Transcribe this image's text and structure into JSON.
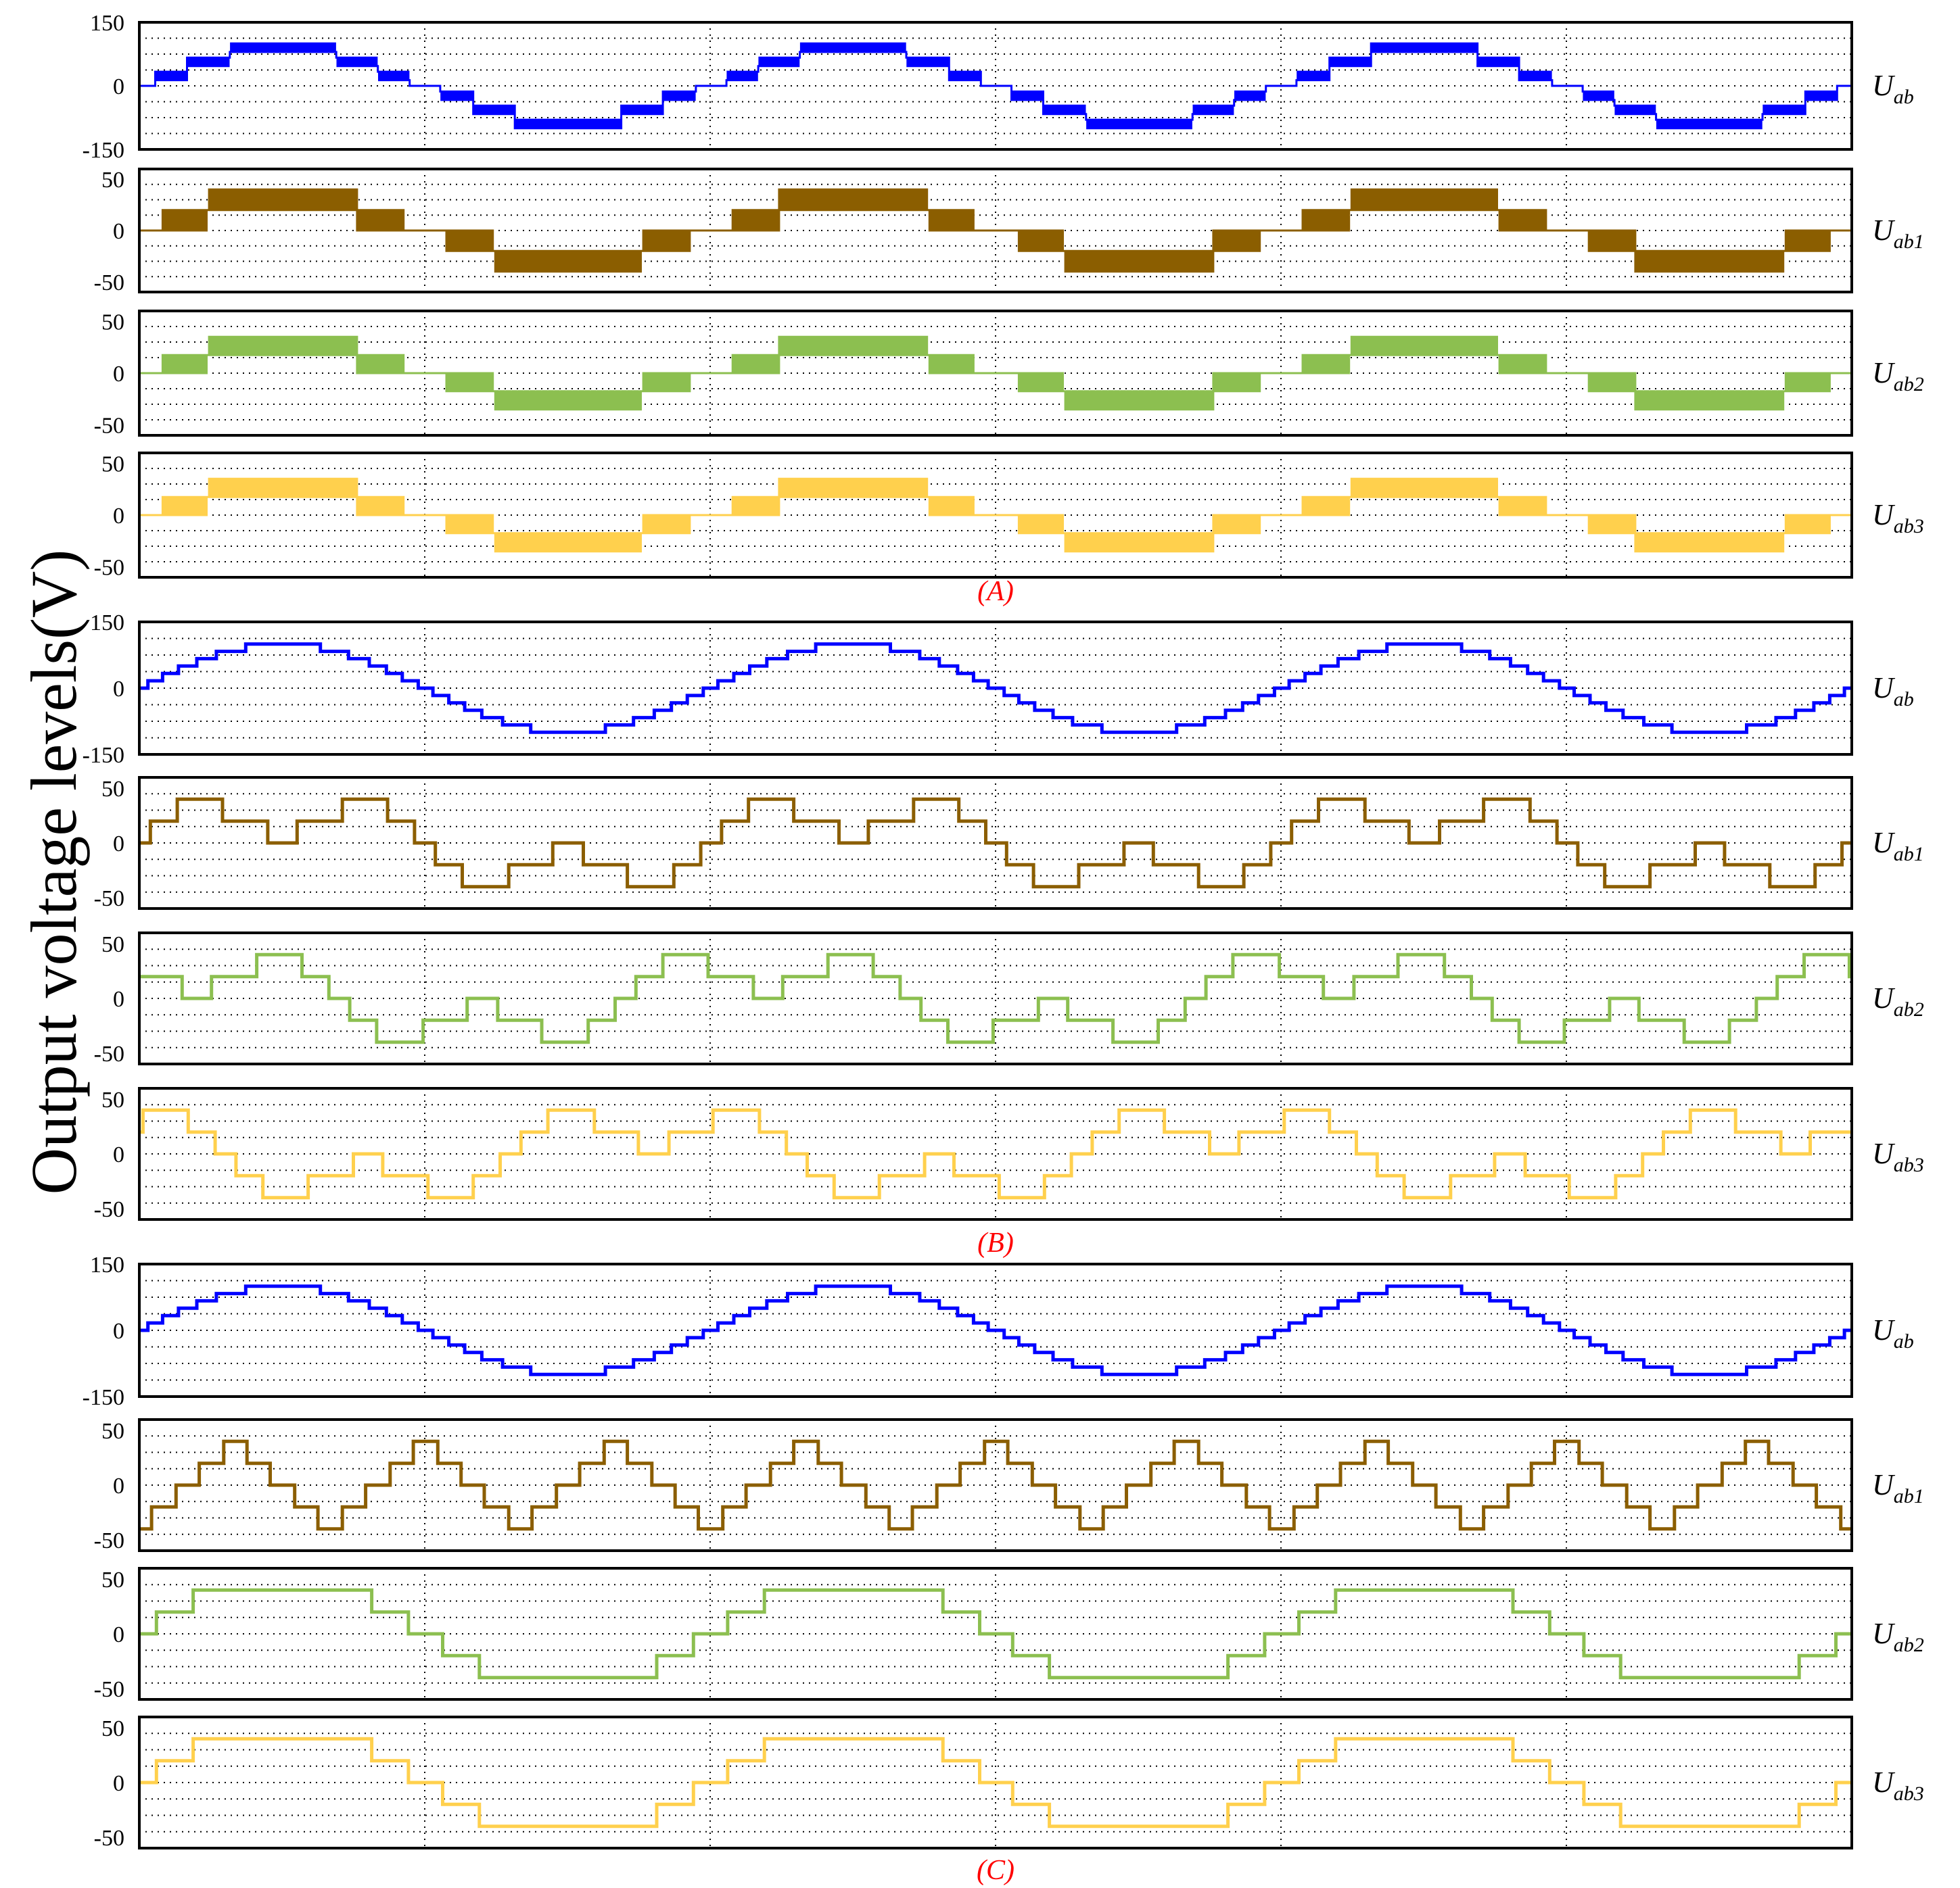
{
  "figure": {
    "ylabel": "Output voltage levels(V)",
    "groups": [
      {
        "label": "(A)"
      },
      {
        "label": "(B)"
      },
      {
        "label": "(C)"
      }
    ]
  },
  "colors": {
    "Uab": "#0000ff",
    "Uab1": "#8b5e00",
    "Uab2": "#8cbf50",
    "Uab3": "#ffd04d",
    "frame": "#000000",
    "grid": "#000000",
    "group_label": "#ff0000"
  },
  "chart_data": [
    {
      "group": "(A)",
      "type": "line",
      "trace": "Uab",
      "label_main": "U",
      "label_sub": "ab",
      "ylim": [
        -150,
        150
      ],
      "yticks": [
        150,
        0,
        -150
      ],
      "cycles": 3,
      "x": [
        0,
        1
      ],
      "grid": "dotted",
      "series": [
        {
          "wave": "sine-pwm",
          "amplitude": 100,
          "levels": 7,
          "dense": true
        }
      ]
    },
    {
      "group": "(A)",
      "type": "line",
      "trace": "Uab1",
      "label_main": "U",
      "label_sub": "ab1",
      "ylim": [
        -60,
        60
      ],
      "yticks": [
        50,
        0,
        -50
      ],
      "cycles": 3,
      "x": [
        0,
        1
      ],
      "grid": "dotted",
      "series": [
        {
          "wave": "pwm-3level",
          "amplitude": 40,
          "levels": 5,
          "dense": true
        }
      ]
    },
    {
      "group": "(A)",
      "type": "line",
      "trace": "Uab2",
      "label_main": "U",
      "label_sub": "ab2",
      "ylim": [
        -60,
        60
      ],
      "yticks": [
        50,
        0,
        -50
      ],
      "cycles": 3,
      "x": [
        0,
        1
      ],
      "grid": "dotted",
      "series": [
        {
          "wave": "pwm-3level",
          "amplitude": 35,
          "levels": 5,
          "dense": true
        }
      ]
    },
    {
      "group": "(A)",
      "type": "line",
      "trace": "Uab3",
      "label_main": "U",
      "label_sub": "ab3",
      "ylim": [
        -60,
        60
      ],
      "yticks": [
        50,
        0,
        -50
      ],
      "cycles": 3,
      "x": [
        0,
        1
      ],
      "grid": "dotted",
      "series": [
        {
          "wave": "pwm-3level",
          "amplitude": 35,
          "levels": 5,
          "dense": true
        }
      ]
    },
    {
      "group": "(B)",
      "type": "line",
      "trace": "Uab",
      "label_main": "U",
      "label_sub": "ab",
      "ylim": [
        -150,
        150
      ],
      "yticks": [
        150,
        0,
        -150
      ],
      "cycles": 3,
      "x": [
        0,
        1
      ],
      "grid": "dotted",
      "series": [
        {
          "wave": "sine-stepped",
          "amplitude": 100,
          "levels": 13,
          "dense": false
        }
      ]
    },
    {
      "group": "(B)",
      "type": "line",
      "trace": "Uab1",
      "label_main": "U",
      "label_sub": "ab1",
      "ylim": [
        -60,
        60
      ],
      "yticks": [
        50,
        0,
        -50
      ],
      "cycles": 3,
      "x": [
        0,
        1
      ],
      "grid": "dotted",
      "series": [
        {
          "wave": "stepped-irregular",
          "amplitude": 40,
          "levels": 5,
          "phase": 0.0
        }
      ]
    },
    {
      "group": "(B)",
      "type": "line",
      "trace": "Uab2",
      "label_main": "U",
      "label_sub": "ab2",
      "ylim": [
        -60,
        60
      ],
      "yticks": [
        50,
        0,
        -50
      ],
      "cycles": 3,
      "x": [
        0,
        1
      ],
      "grid": "dotted",
      "series": [
        {
          "wave": "stepped-irregular",
          "amplitude": 40,
          "levels": 5,
          "phase": 0.15
        }
      ]
    },
    {
      "group": "(B)",
      "type": "line",
      "trace": "Uab3",
      "label_main": "U",
      "label_sub": "ab3",
      "ylim": [
        -60,
        60
      ],
      "yticks": [
        50,
        0,
        -50
      ],
      "cycles": 3,
      "x": [
        0,
        1
      ],
      "grid": "dotted",
      "series": [
        {
          "wave": "stepped-irregular",
          "amplitude": 40,
          "levels": 5,
          "phase": 0.35
        }
      ]
    },
    {
      "group": "(C)",
      "type": "line",
      "trace": "Uab",
      "label_main": "U",
      "label_sub": "ab",
      "ylim": [
        -150,
        150
      ],
      "yticks": [
        150,
        0,
        -150
      ],
      "cycles": 3,
      "x": [
        0,
        1
      ],
      "grid": "dotted",
      "series": [
        {
          "wave": "sine-stepped",
          "amplitude": 100,
          "levels": 13,
          "dense": false
        }
      ]
    },
    {
      "group": "(C)",
      "type": "line",
      "trace": "Uab1",
      "label_main": "U",
      "label_sub": "ab1",
      "ylim": [
        -60,
        60
      ],
      "yticks": [
        50,
        0,
        -50
      ],
      "cycles": 3,
      "x": [
        0,
        1
      ],
      "grid": "dotted",
      "series": [
        {
          "wave": "triangle-stepped",
          "amplitude": 40,
          "levels": 5,
          "frequency_multiple": 3
        }
      ]
    },
    {
      "group": "(C)",
      "type": "line",
      "trace": "Uab2",
      "label_main": "U",
      "label_sub": "ab2",
      "ylim": [
        -60,
        60
      ],
      "yticks": [
        50,
        0,
        -50
      ],
      "cycles": 3,
      "x": [
        0,
        1
      ],
      "grid": "dotted",
      "series": [
        {
          "wave": "quasi-square",
          "amplitude": 40,
          "levels": 5
        }
      ]
    },
    {
      "group": "(C)",
      "type": "line",
      "trace": "Uab3",
      "label_main": "U",
      "label_sub": "ab3",
      "ylim": [
        -60,
        60
      ],
      "yticks": [
        50,
        0,
        -50
      ],
      "cycles": 3,
      "x": [
        0,
        1
      ],
      "grid": "dotted",
      "series": [
        {
          "wave": "quasi-square",
          "amplitude": 40,
          "levels": 5
        }
      ]
    }
  ]
}
